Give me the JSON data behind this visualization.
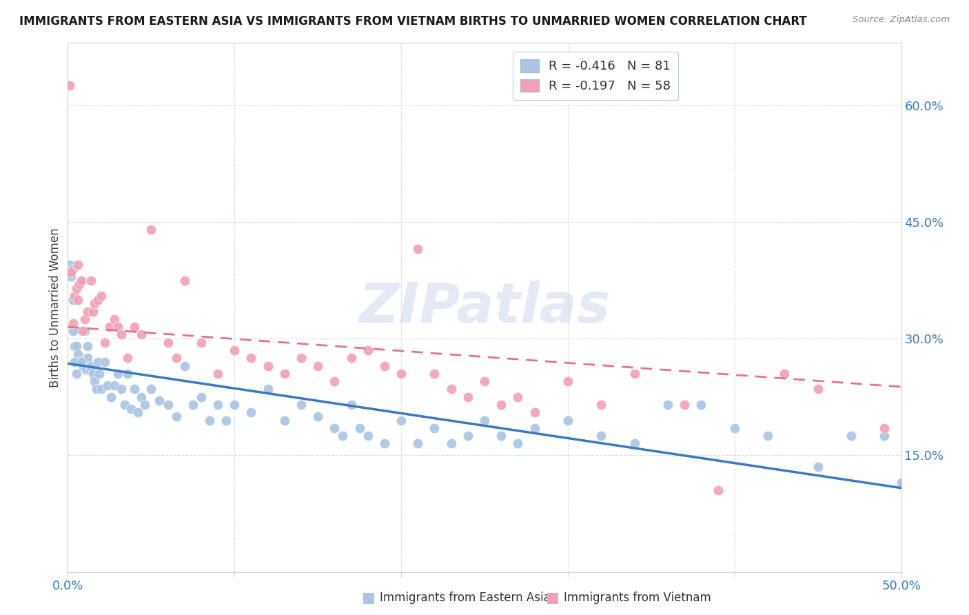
{
  "title": "IMMIGRANTS FROM EASTERN ASIA VS IMMIGRANTS FROM VIETNAM BIRTHS TO UNMARRIED WOMEN CORRELATION CHART",
  "source": "Source: ZipAtlas.com",
  "ylabel": "Births to Unmarried Women",
  "xlim": [
    0.0,
    0.5
  ],
  "ylim": [
    0.0,
    0.68
  ],
  "ytick_vals": [
    0.15,
    0.3,
    0.45,
    0.6
  ],
  "xtick_vals": [
    0.0,
    0.1,
    0.2,
    0.3,
    0.4,
    0.5
  ],
  "blue_color": "#aac4e2",
  "pink_color": "#f2a0b5",
  "line_blue": "#3a7abf",
  "line_pink": "#e8708a",
  "watermark_text": "ZIPatlas",
  "legend_line1": "R = -0.416   N = 81",
  "legend_line2": "R = -0.197   N = 58",
  "legend_r1": "-0.416",
  "legend_n1": "81",
  "legend_r2": "-0.197",
  "legend_n2": "58",
  "blue_line_x": [
    0.0,
    0.5
  ],
  "blue_line_y": [
    0.268,
    0.108
  ],
  "pink_line_x": [
    0.0,
    0.5
  ],
  "pink_line_y": [
    0.315,
    0.238
  ],
  "blue_scatter_x": [
    0.001,
    0.002,
    0.003,
    0.003,
    0.004,
    0.005,
    0.006,
    0.007,
    0.008,
    0.009,
    0.01,
    0.011,
    0.012,
    0.013,
    0.014,
    0.015,
    0.016,
    0.017,
    0.018,
    0.019,
    0.02,
    0.022,
    0.024,
    0.026,
    0.028,
    0.03,
    0.032,
    0.034,
    0.036,
    0.038,
    0.04,
    0.042,
    0.044,
    0.046,
    0.05,
    0.055,
    0.06,
    0.065,
    0.07,
    0.075,
    0.08,
    0.085,
    0.09,
    0.095,
    0.1,
    0.11,
    0.12,
    0.13,
    0.14,
    0.15,
    0.16,
    0.165,
    0.17,
    0.175,
    0.18,
    0.19,
    0.2,
    0.21,
    0.22,
    0.23,
    0.24,
    0.25,
    0.26,
    0.27,
    0.28,
    0.3,
    0.32,
    0.34,
    0.36,
    0.38,
    0.4,
    0.42,
    0.45,
    0.47,
    0.49,
    0.5,
    0.003,
    0.004,
    0.005,
    0.008,
    0.012
  ],
  "blue_scatter_y": [
    0.395,
    0.38,
    0.35,
    0.31,
    0.29,
    0.29,
    0.28,
    0.27,
    0.27,
    0.265,
    0.31,
    0.26,
    0.275,
    0.26,
    0.265,
    0.255,
    0.245,
    0.235,
    0.27,
    0.255,
    0.235,
    0.27,
    0.24,
    0.225,
    0.24,
    0.255,
    0.235,
    0.215,
    0.255,
    0.21,
    0.235,
    0.205,
    0.225,
    0.215,
    0.235,
    0.22,
    0.215,
    0.2,
    0.265,
    0.215,
    0.225,
    0.195,
    0.215,
    0.195,
    0.215,
    0.205,
    0.235,
    0.195,
    0.215,
    0.2,
    0.185,
    0.175,
    0.215,
    0.185,
    0.175,
    0.165,
    0.195,
    0.165,
    0.185,
    0.165,
    0.175,
    0.195,
    0.175,
    0.165,
    0.185,
    0.195,
    0.175,
    0.165,
    0.215,
    0.215,
    0.185,
    0.175,
    0.135,
    0.175,
    0.175,
    0.115,
    0.39,
    0.27,
    0.255,
    0.27,
    0.29
  ],
  "pink_scatter_x": [
    0.001,
    0.002,
    0.004,
    0.005,
    0.006,
    0.007,
    0.008,
    0.01,
    0.012,
    0.014,
    0.015,
    0.016,
    0.018,
    0.02,
    0.022,
    0.025,
    0.028,
    0.03,
    0.032,
    0.036,
    0.04,
    0.044,
    0.05,
    0.06,
    0.065,
    0.07,
    0.08,
    0.09,
    0.1,
    0.11,
    0.12,
    0.13,
    0.14,
    0.15,
    0.16,
    0.17,
    0.18,
    0.19,
    0.2,
    0.21,
    0.22,
    0.23,
    0.24,
    0.25,
    0.26,
    0.27,
    0.28,
    0.3,
    0.32,
    0.34,
    0.37,
    0.39,
    0.43,
    0.45,
    0.49,
    0.003,
    0.006,
    0.009
  ],
  "pink_scatter_y": [
    0.625,
    0.385,
    0.355,
    0.365,
    0.395,
    0.37,
    0.375,
    0.325,
    0.335,
    0.375,
    0.335,
    0.345,
    0.35,
    0.355,
    0.295,
    0.315,
    0.325,
    0.315,
    0.305,
    0.275,
    0.315,
    0.305,
    0.44,
    0.295,
    0.275,
    0.375,
    0.295,
    0.255,
    0.285,
    0.275,
    0.265,
    0.255,
    0.275,
    0.265,
    0.245,
    0.275,
    0.285,
    0.265,
    0.255,
    0.415,
    0.255,
    0.235,
    0.225,
    0.245,
    0.215,
    0.225,
    0.205,
    0.245,
    0.215,
    0.255,
    0.215,
    0.105,
    0.255,
    0.235,
    0.185,
    0.32,
    0.35,
    0.31
  ],
  "figsize": [
    14.06,
    8.92
  ],
  "dpi": 100
}
